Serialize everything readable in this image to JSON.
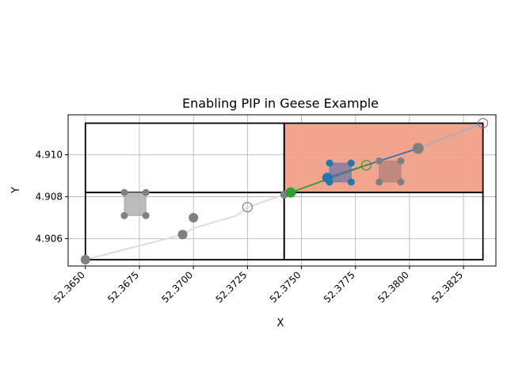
{
  "chart_data": {
    "type": "scatter",
    "title": "Enabling PIP in Geese Example",
    "xlabel": "X",
    "ylabel": "Y",
    "xlim": [
      52.3642,
      52.384
    ],
    "ylim": [
      4.9047,
      4.9119
    ],
    "x_ticks": [
      52.365,
      52.3675,
      52.37,
      52.3725,
      52.375,
      52.3775,
      52.38,
      52.3825
    ],
    "x_tick_labels": [
      "52.3650",
      "52.3675",
      "52.3700",
      "52.3725",
      "52.3750",
      "52.3775",
      "52.3800",
      "52.3825"
    ],
    "y_ticks": [
      4.906,
      4.908,
      4.91
    ],
    "y_tick_labels": [
      "4.906",
      "4.908",
      "4.910"
    ],
    "grid": true,
    "colors": {
      "trail": "#dddddd",
      "trail_recent": "#b0b0b0",
      "point": "#808080",
      "highlight_fill": "#f0a088",
      "path_blue": "#3a6fb0",
      "path_green": "#2ca02c",
      "marker_blue": "#1f77b4",
      "marker_green": "#2ca02c"
    },
    "grid_cells": [
      {
        "x0": 52.365,
        "x1": 52.3742,
        "y0": 4.905,
        "y1": 4.9082
      },
      {
        "x0": 52.3742,
        "x1": 52.3834,
        "y0": 4.905,
        "y1": 4.9082
      },
      {
        "x0": 52.365,
        "x1": 52.3742,
        "y0": 4.9082,
        "y1": 4.9115
      },
      {
        "x0": 52.3742,
        "x1": 52.3834,
        "y0": 4.9082,
        "y1": 4.9115
      }
    ],
    "highlighted_cell": {
      "x0": 52.3742,
      "x1": 52.3834,
      "y0": 4.9082,
      "y1": 4.9115
    },
    "trail_path": [
      {
        "x": 52.365,
        "y": 4.905
      },
      {
        "x": 52.3695,
        "y": 4.9062
      },
      {
        "x": 52.37,
        "y": 4.9065
      },
      {
        "x": 52.372,
        "y": 4.9071
      },
      {
        "x": 52.3725,
        "y": 4.9075
      },
      {
        "x": 52.3742,
        "y": 4.9081
      },
      {
        "x": 52.3745,
        "y": 4.9082
      }
    ],
    "recent_path": [
      {
        "x": 52.3804,
        "y": 4.9103
      },
      {
        "x": 52.3834,
        "y": 4.9115
      }
    ],
    "blue_path": [
      {
        "x": 52.3762,
        "y": 4.9089
      },
      {
        "x": 52.3804,
        "y": 4.9103
      }
    ],
    "green_path": [
      {
        "x": 52.3745,
        "y": 4.9082
      },
      {
        "x": 52.378,
        "y": 4.9095
      }
    ],
    "gray_points": [
      {
        "x": 52.365,
        "y": 4.905,
        "r": 6
      },
      {
        "x": 52.3695,
        "y": 4.9062,
        "r": 6
      },
      {
        "x": 52.37,
        "y": 4.907,
        "r": 6
      },
      {
        "x": 52.3742,
        "y": 4.9081,
        "r": 5
      },
      {
        "x": 52.3804,
        "y": 4.9103,
        "r": 7
      }
    ],
    "hollow_points": [
      {
        "x": 52.3725,
        "y": 4.9075,
        "color": "#808080"
      },
      {
        "x": 52.3834,
        "y": 4.9115,
        "color": "#808080"
      },
      {
        "x": 52.378,
        "y": 4.9095,
        "color": "#2ca02c"
      }
    ],
    "green_point": {
      "x": 52.3745,
      "y": 4.9082
    },
    "blue_point": {
      "x": 52.3762,
      "y": 4.9089
    },
    "pip_boxes": [
      {
        "label": "gray",
        "x0": 52.3668,
        "x1": 52.3678,
        "y0": 4.9071,
        "y1": 4.9082,
        "fill": "#b0b0b0",
        "opacity": 0.85,
        "corner_color": "#808080"
      },
      {
        "label": "blue",
        "x0": 52.3763,
        "x1": 52.3773,
        "y0": 4.9087,
        "y1": 4.9096,
        "fill": "#5a6aa8",
        "opacity": 0.6,
        "corner_color": "#1f77b4"
      },
      {
        "label": "gray-red",
        "x0": 52.3786,
        "x1": 52.3796,
        "y0": 4.9087,
        "y1": 4.9097,
        "fill": "#8a6a6a",
        "opacity": 0.45,
        "corner_color": "#808080"
      }
    ]
  }
}
